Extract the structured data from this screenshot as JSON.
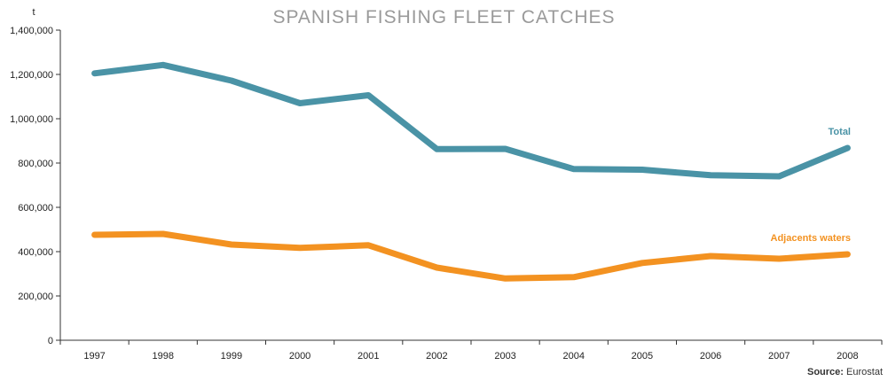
{
  "chart_data": {
    "type": "line",
    "title": "SPANISH FISHING FLEET CATCHES",
    "unit": "t",
    "x": [
      "1997",
      "1998",
      "1999",
      "2000",
      "2001",
      "2002",
      "2003",
      "2004",
      "2005",
      "2006",
      "2007",
      "2008"
    ],
    "ylim": [
      0,
      1400000
    ],
    "yticks": [
      0,
      200000,
      400000,
      600000,
      800000,
      1000000,
      1200000,
      1400000
    ],
    "ytick_labels": [
      "0",
      "200,000",
      "400,000",
      "600,000",
      "800,000",
      "1,000,000",
      "1,200,000",
      "1,400,000"
    ],
    "grid": false,
    "series": [
      {
        "name": "Total",
        "color": "#4a93a6",
        "values": [
          1205000,
          1243000,
          1172000,
          1070000,
          1106000,
          863000,
          864000,
          773000,
          770000,
          745000,
          740000,
          868000
        ]
      },
      {
        "name": "Adjacents waters",
        "color": "#f39221",
        "values": [
          476000,
          480000,
          432000,
          417000,
          429000,
          328000,
          279000,
          285000,
          349000,
          380000,
          368000,
          388000
        ]
      }
    ]
  },
  "source": {
    "label": "Source:",
    "value": "Eurostat"
  }
}
